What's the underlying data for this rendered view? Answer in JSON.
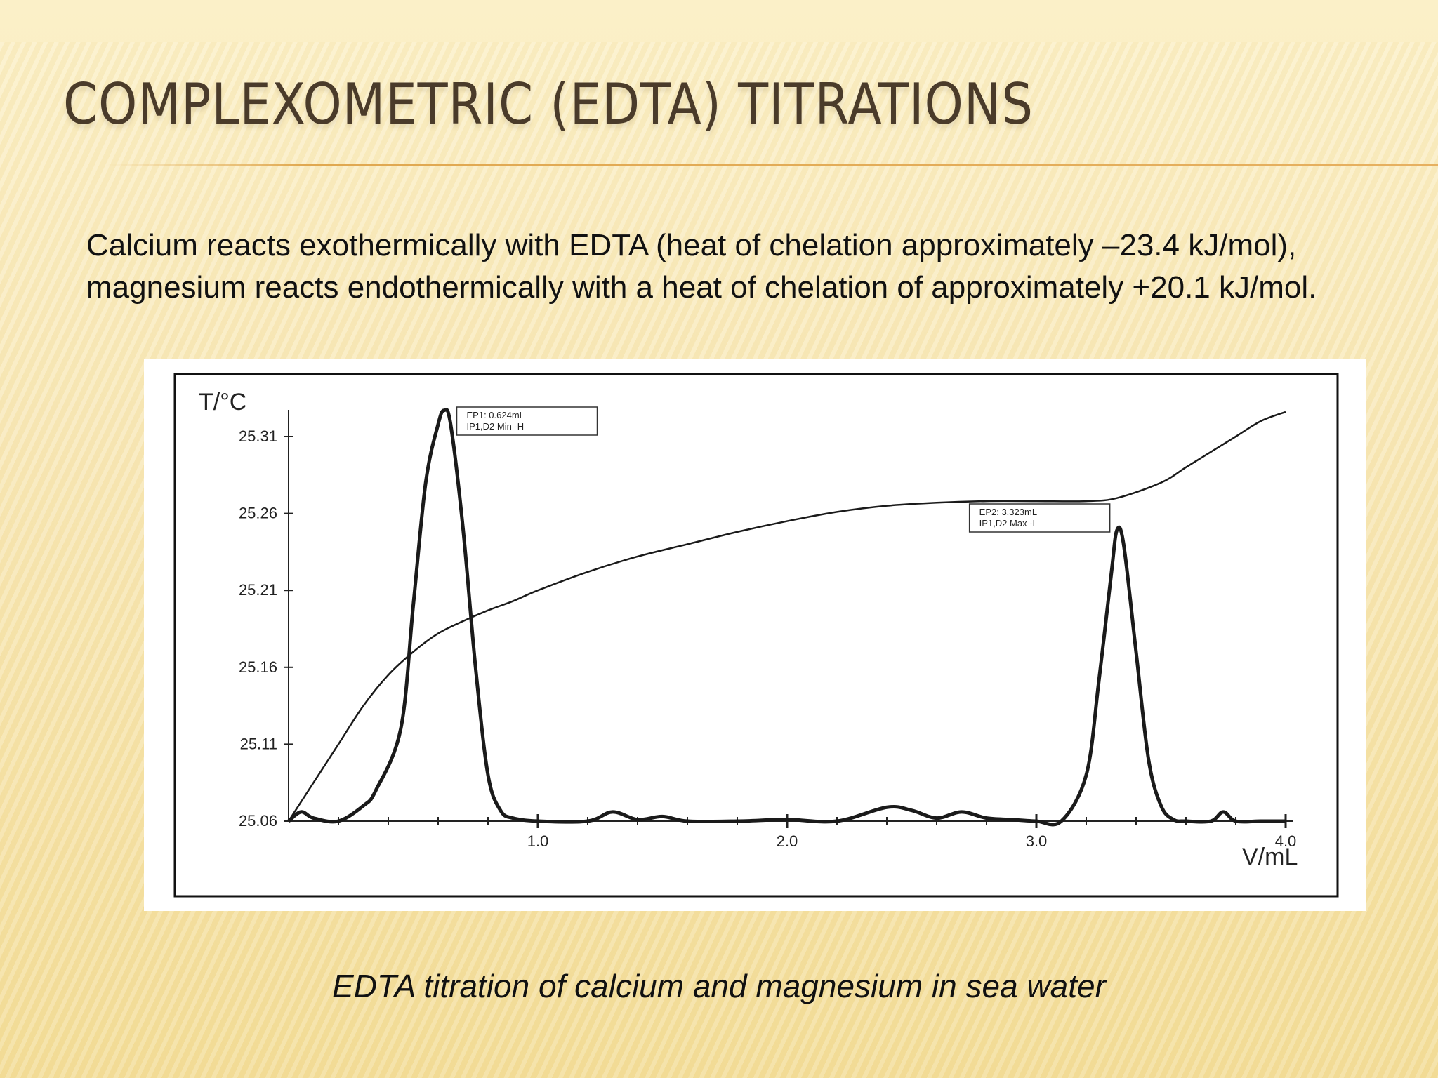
{
  "slide": {
    "title": "Complexometric (EDTA) Titrations",
    "body": "Calcium reacts exothermically with EDTA (heat of chelation approximately –23.4 kJ/mol), magnesium reacts endothermically with a heat of chelation of approximately +20.1 kJ/mol.",
    "caption": "EDTA titration of calcium and magnesium in sea water"
  },
  "chart_data": {
    "type": "line",
    "ylabel": "T/°C",
    "xlabel": "V/mL",
    "xlim": [
      0,
      4.0
    ],
    "ylim": [
      25.06,
      25.33
    ],
    "x_ticks": [
      1.0,
      2.0,
      3.0,
      4.0
    ],
    "x_tick_labels": [
      "1.0",
      "2.0",
      "3.0",
      "4.0"
    ],
    "y_ticks": [
      25.06,
      25.11,
      25.16,
      25.21,
      25.26,
      25.31
    ],
    "y_tick_labels": [
      "25.06",
      "25.11",
      "25.16",
      "25.21",
      "25.26",
      "25.31"
    ],
    "grid": false,
    "series": [
      {
        "style": "thin",
        "x": [
          0.0,
          0.1,
          0.2,
          0.3,
          0.4,
          0.5,
          0.6,
          0.7,
          0.8,
          0.9,
          1.0,
          1.2,
          1.4,
          1.6,
          1.8,
          2.0,
          2.2,
          2.4,
          2.6,
          2.8,
          3.0,
          3.2,
          3.323,
          3.5,
          3.6,
          3.7,
          3.8,
          3.9,
          4.0
        ],
        "y": [
          25.06,
          25.085,
          25.11,
          25.135,
          25.155,
          25.17,
          25.182,
          25.19,
          25.197,
          25.203,
          25.21,
          25.222,
          25.232,
          25.24,
          25.248,
          25.255,
          25.261,
          25.265,
          25.267,
          25.268,
          25.268,
          25.268,
          25.27,
          25.28,
          25.29,
          25.3,
          25.31,
          25.32,
          25.326
        ]
      },
      {
        "style": "bold",
        "x": [
          0.0,
          0.05,
          0.1,
          0.2,
          0.3,
          0.35,
          0.45,
          0.5,
          0.55,
          0.6,
          0.624,
          0.65,
          0.7,
          0.75,
          0.8,
          0.85,
          0.9,
          1.0,
          1.2,
          1.3,
          1.4,
          1.5,
          1.6,
          1.8,
          2.0,
          2.2,
          2.4,
          2.5,
          2.6,
          2.7,
          2.8,
          2.9,
          3.0,
          3.1,
          3.2,
          3.25,
          3.3,
          3.323,
          3.35,
          3.4,
          3.45,
          3.5,
          3.55,
          3.6,
          3.7,
          3.75,
          3.8,
          3.9,
          4.0
        ],
        "y": [
          25.06,
          25.066,
          25.062,
          25.06,
          25.07,
          25.08,
          25.12,
          25.2,
          25.28,
          25.318,
          25.327,
          25.318,
          25.25,
          25.16,
          25.09,
          25.067,
          25.062,
          25.06,
          25.06,
          25.066,
          25.061,
          25.063,
          25.06,
          25.06,
          25.061,
          25.06,
          25.069,
          25.067,
          25.062,
          25.066,
          25.062,
          25.061,
          25.06,
          25.06,
          25.09,
          25.15,
          25.22,
          25.249,
          25.24,
          25.17,
          25.1,
          25.07,
          25.061,
          25.06,
          25.06,
          25.066,
          25.06,
          25.06,
          25.06
        ]
      }
    ],
    "annotations": [
      {
        "x": 0.624,
        "y": 25.327,
        "lines": [
          "EP1: 0.624mL",
          "IP1,D2 Min -H"
        ]
      },
      {
        "x": 3.323,
        "y": 25.27,
        "lines": [
          "EP2: 3.323mL",
          "IP1,D2 Max -I"
        ]
      }
    ]
  }
}
